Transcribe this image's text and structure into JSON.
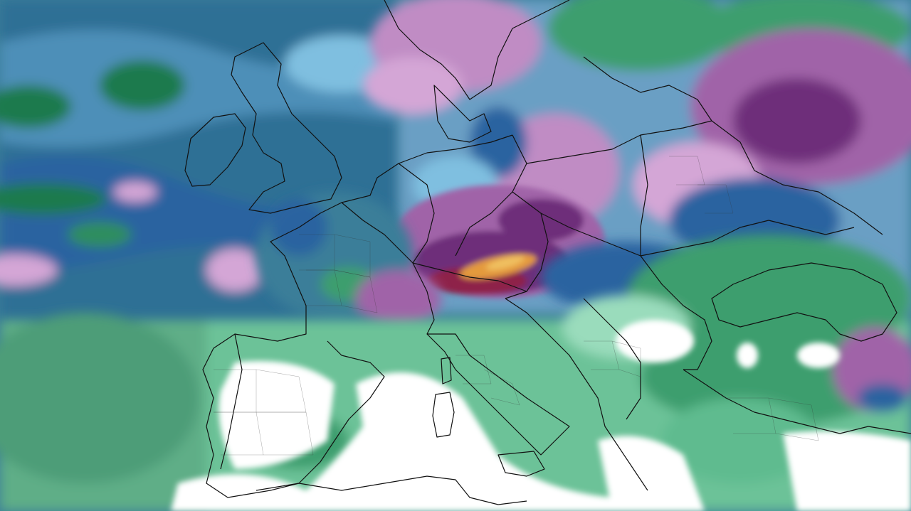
{
  "map": {
    "region": "Europe",
    "field": "precipitation",
    "palette": {
      "white": "#ffffff",
      "mint": "#b8ead0",
      "green_light": "#7ccfa3",
      "green": "#3e9e6e",
      "green_dark": "#1f7a4d",
      "teal": "#3a7e99",
      "blue": "#2a64a0",
      "blue_light": "#7fbfe0",
      "sky": "#a9d8ee",
      "lilac": "#d4a6d6",
      "purple": "#a064a8",
      "purple_dark": "#6e2f7a",
      "maroon": "#8e2048",
      "orange": "#e49a3c",
      "gold": "#f0c060",
      "border": "#111111",
      "admin": "#333333"
    }
  }
}
